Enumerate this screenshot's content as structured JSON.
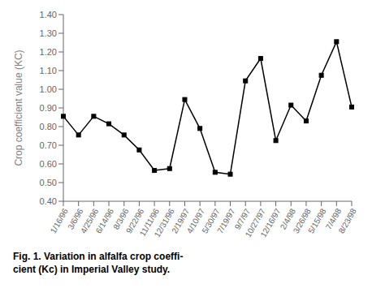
{
  "chart_data": {
    "type": "line",
    "categories": [
      "1/16/96",
      "3/6/96",
      "4/25/96",
      "6/14/96",
      "8/3/96",
      "9/22/96",
      "11/11/96",
      "12/31/96",
      "2/19/97",
      "4/10/97",
      "5/30/97",
      "7/19/97",
      "9/7/97",
      "10/27/97",
      "12/16/97",
      "2/4/98",
      "3/26/98",
      "5/15/98",
      "7/4/98",
      "8/23/98"
    ],
    "values": [
      0.855,
      0.755,
      0.855,
      0.815,
      0.755,
      0.675,
      0.565,
      0.575,
      0.945,
      0.79,
      0.555,
      0.545,
      1.045,
      1.165,
      0.725,
      0.915,
      0.83,
      1.075,
      1.255,
      0.905
    ],
    "color": "#000000",
    "marker": "square",
    "line_style": "solid",
    "ylabel": "Crop coefficient value (KC)",
    "ylim": [
      0.4,
      1.4
    ],
    "yticks": [
      {
        "value": 0.4,
        "label": "0.40"
      },
      {
        "value": 0.5,
        "label": "0.50"
      },
      {
        "value": 0.6,
        "label": "0.60"
      },
      {
        "value": 0.7,
        "label": "0.70"
      },
      {
        "value": 0.8,
        "label": "0.80"
      },
      {
        "value": 0.9,
        "label": "0.90"
      },
      {
        "value": 1.0,
        "label": "1.00"
      },
      {
        "value": 1.1,
        "label": "1.10"
      },
      {
        "value": 1.2,
        "label": "1.20"
      },
      {
        "value": 1.3,
        "label": "1.30"
      },
      {
        "value": 1.4,
        "label": "1.40"
      }
    ],
    "grid": false,
    "annotations": [
      "Fig. 1. Variation in alfalfa crop coeffi-",
      "cient (Kc) in Imperial Valley study."
    ]
  }
}
